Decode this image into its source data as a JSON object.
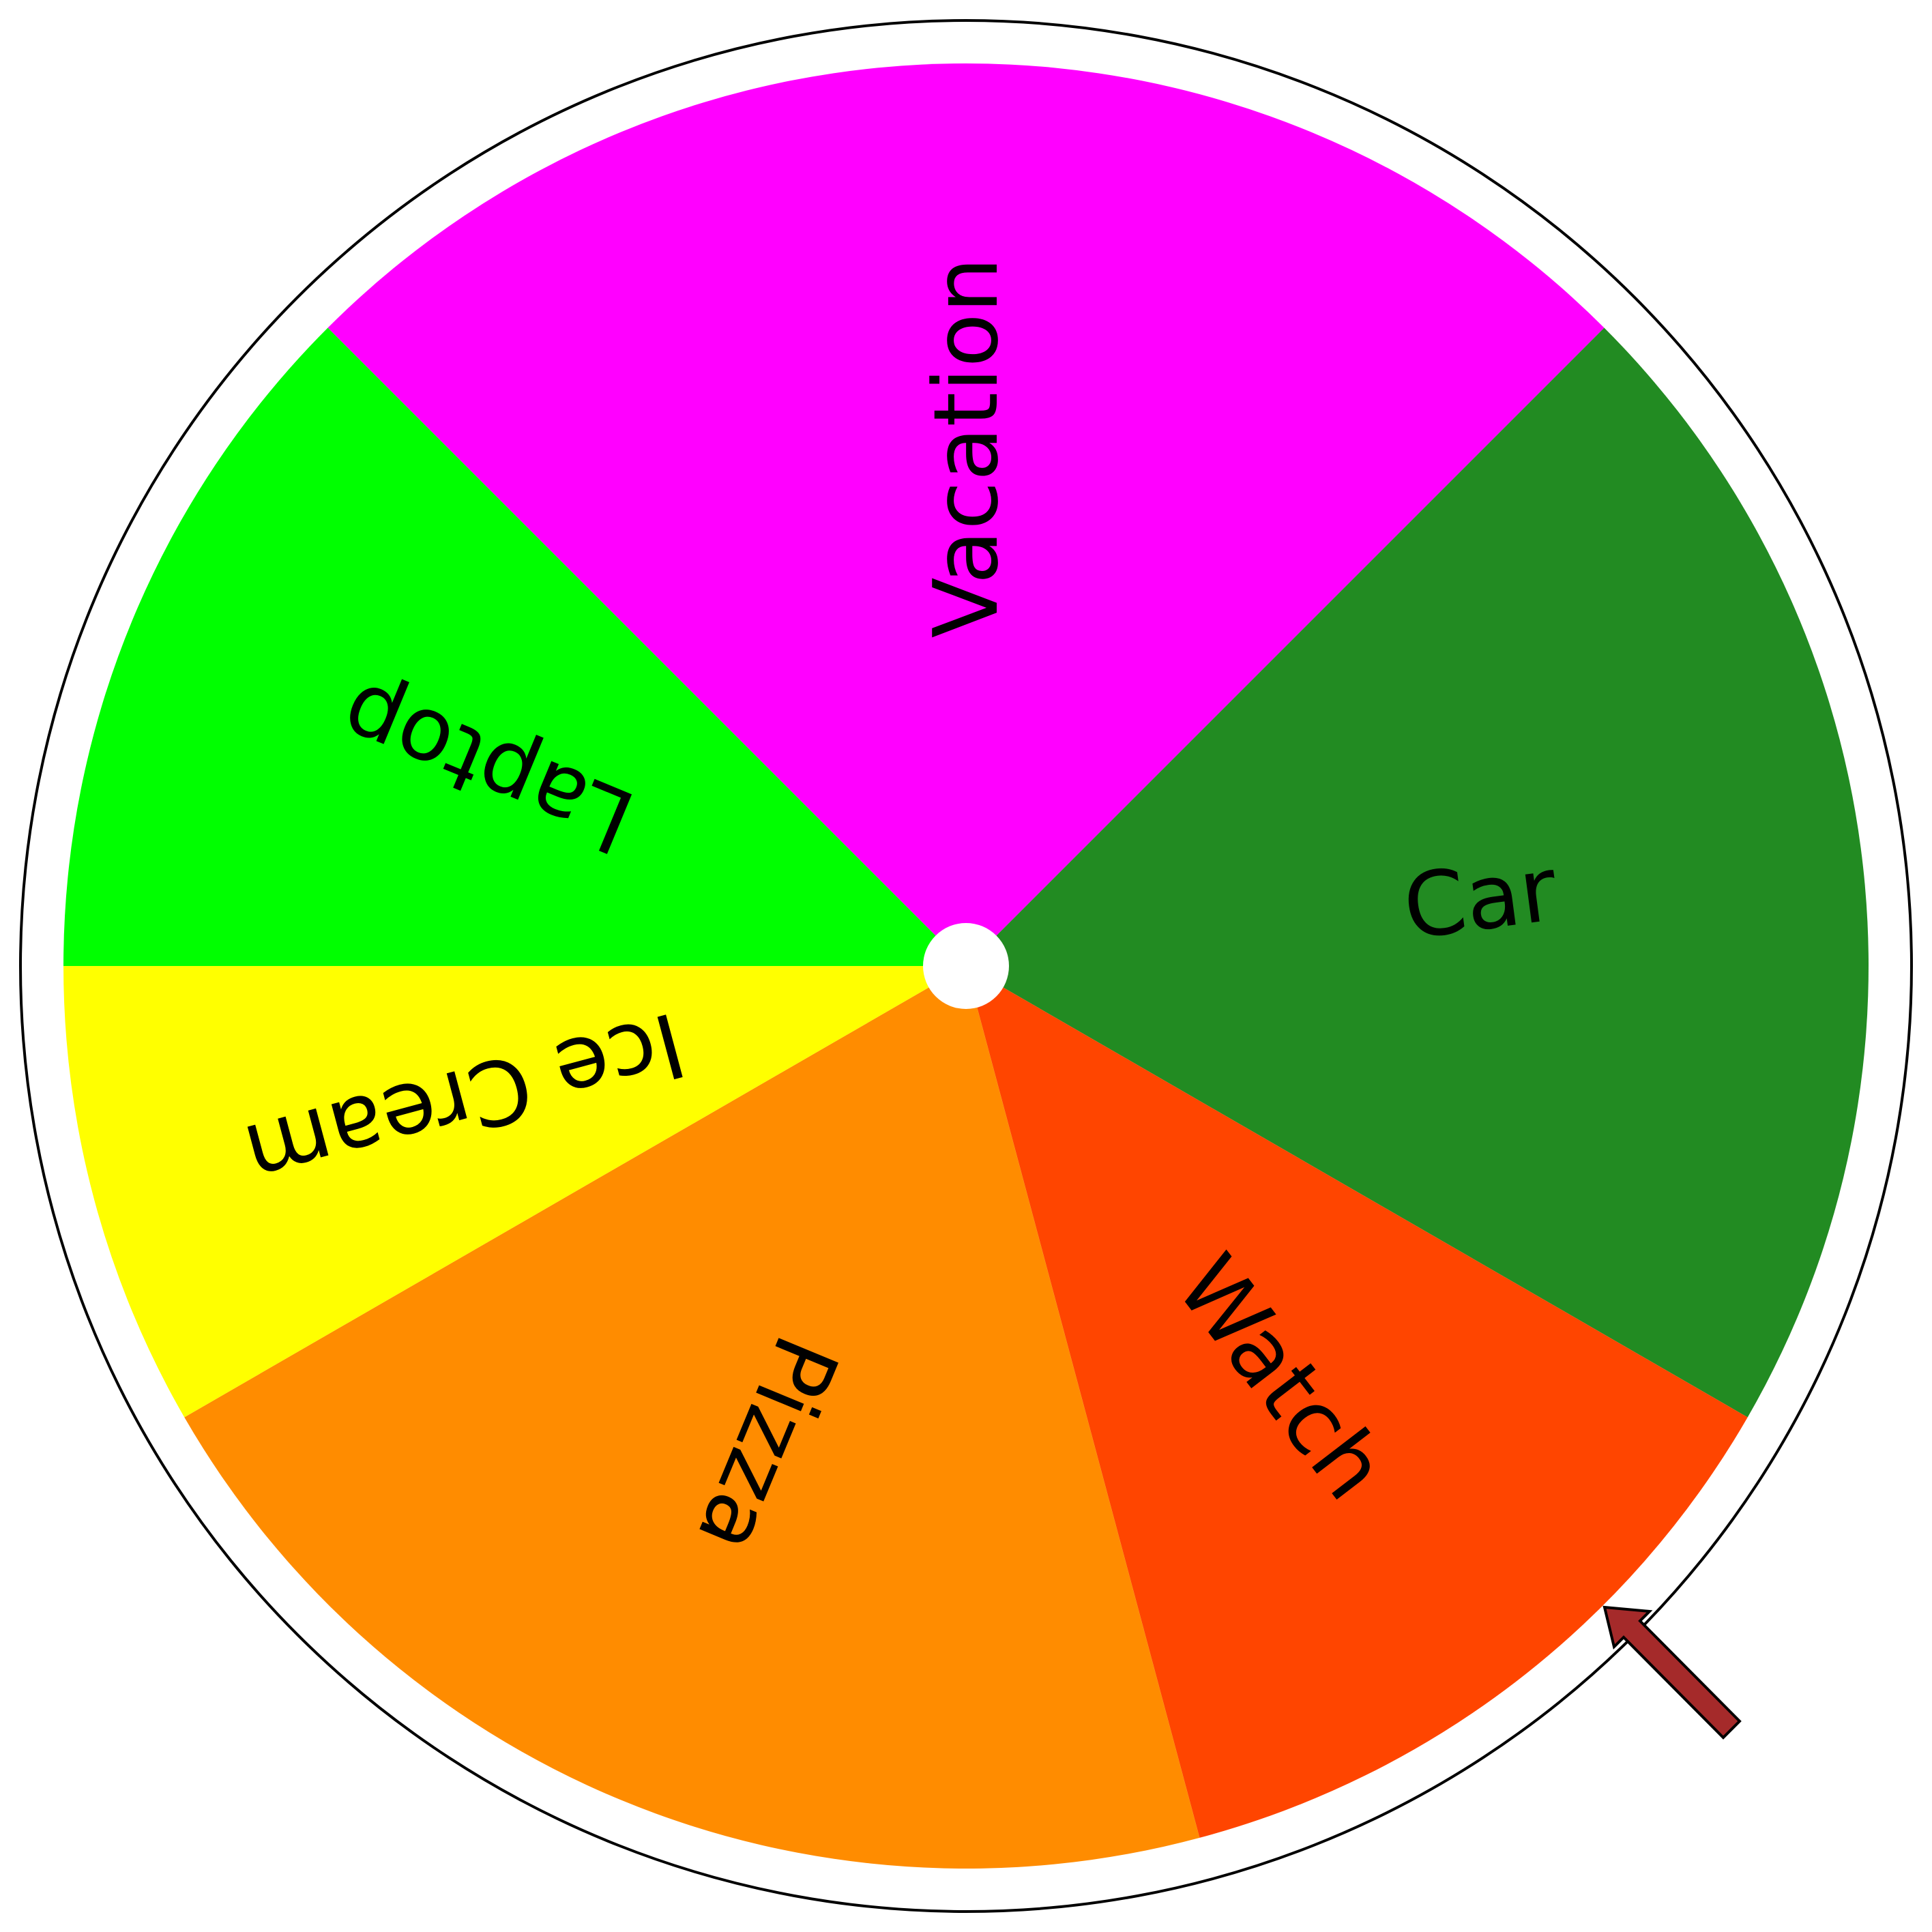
{
  "wheel": {
    "segments": [
      {
        "label": "Vacation",
        "color": "#FF00FF",
        "weight": 90
      },
      {
        "label": "Car",
        "color": "#228B22",
        "weight": 75
      },
      {
        "label": "Watch",
        "color": "#FF4500",
        "weight": 45
      },
      {
        "label": "Pizza",
        "color": "#FF8C00",
        "weight": 75
      },
      {
        "label": "Ice Cream",
        "color": "#FFFF00",
        "weight": 30
      },
      {
        "label": "Laptop",
        "color": "#00FF00",
        "weight": 45
      }
    ],
    "rim_color": "#FFFFFF",
    "outline_color": "#000000",
    "hub_color": "#FFFFFF"
  },
  "pointer": {
    "icon": "arrow-pointer-icon",
    "color": "#A52A2A",
    "outline_color": "#000000"
  }
}
